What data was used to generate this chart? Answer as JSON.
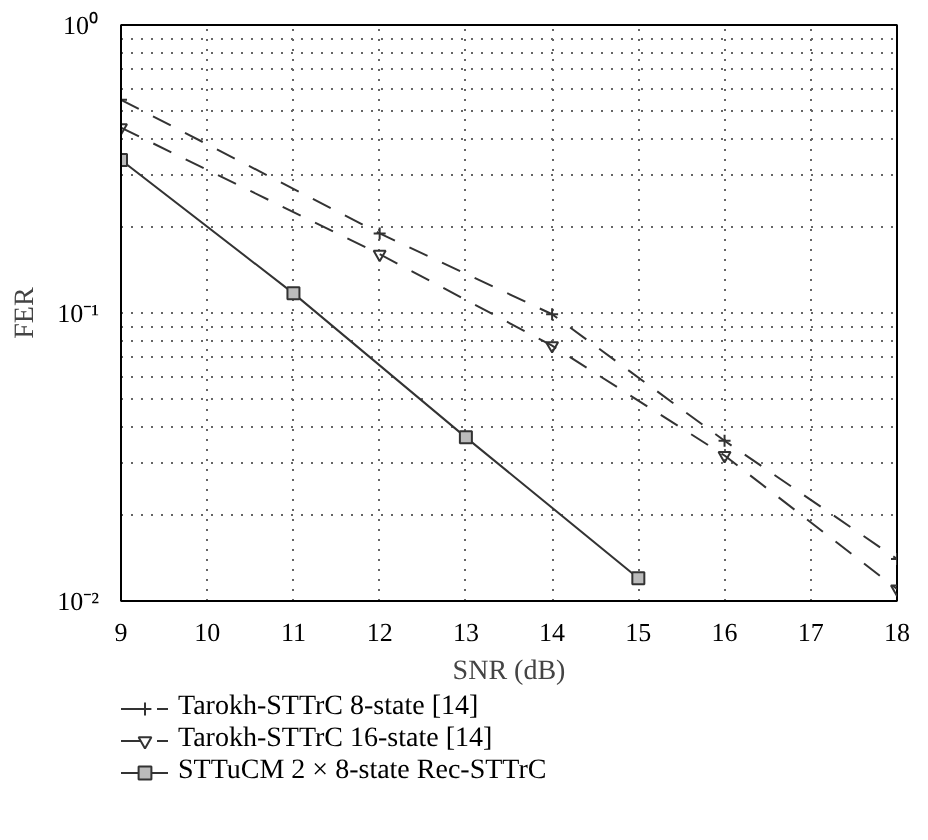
{
  "chart_data": {
    "type": "line",
    "xlabel": "SNR (dB)",
    "ylabel": "FER",
    "log": "y",
    "grid": true,
    "legend": "bottom",
    "xlim": [
      9,
      18
    ],
    "xticks": [
      9,
      10,
      11,
      12,
      13,
      14,
      15,
      16,
      17,
      18
    ],
    "ylim": [
      0.01,
      1
    ],
    "yticks": [
      {
        "value": 0.01,
        "label": "10⁻²"
      },
      {
        "value": 0.1,
        "label": "10⁻¹"
      },
      {
        "value": 1,
        "label": "10⁰"
      }
    ],
    "series": [
      {
        "name": "Tarokh-STTrC 8-state [14]",
        "color": "#333333",
        "marker": "cross",
        "line_style": "dashed",
        "x": [
          9,
          12,
          14,
          16,
          18
        ],
        "values": [
          0.55,
          0.189,
          0.099,
          0.036,
          0.014
        ]
      },
      {
        "name": "Tarokh-STTrC 16-state [14]",
        "color": "#333333",
        "marker": "triangle",
        "line_style": "dashed",
        "x": [
          9,
          12,
          14,
          16,
          18
        ],
        "values": [
          0.44,
          0.16,
          0.077,
          0.032,
          0.011
        ]
      },
      {
        "name": "STTuCM 2 × 8-state Rec-STTrC",
        "color": "#333333",
        "marker": "square",
        "line_style": "solid",
        "x": [
          9,
          11,
          13,
          15
        ],
        "values": [
          0.34,
          0.117,
          0.037,
          0.012
        ]
      }
    ]
  }
}
